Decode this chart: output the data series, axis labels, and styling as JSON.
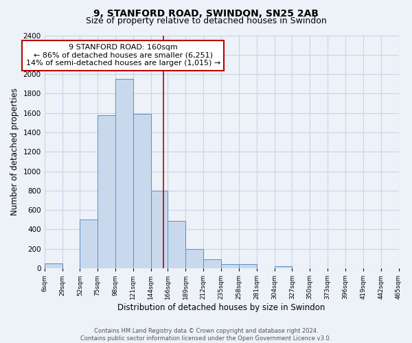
{
  "title": "9, STANFORD ROAD, SWINDON, SN25 2AB",
  "subtitle": "Size of property relative to detached houses in Swindon",
  "xlabel": "Distribution of detached houses by size in Swindon",
  "ylabel": "Number of detached properties",
  "bin_edges": [
    6,
    29,
    52,
    75,
    98,
    121,
    144,
    166,
    189,
    212,
    235,
    258,
    281,
    304,
    327,
    350,
    373,
    396,
    419,
    442,
    465
  ],
  "bar_heights": [
    50,
    0,
    500,
    1580,
    1950,
    1590,
    800,
    490,
    200,
    90,
    40,
    40,
    0,
    20,
    0,
    0,
    0,
    0,
    0,
    0
  ],
  "bar_color": "#c8d9ed",
  "bar_edge_color": "#5b8dc8",
  "grid_color": "#c8d4e8",
  "background_color": "#edf1f8",
  "property_line_x": 160,
  "property_line_color": "#bb0000",
  "annotation_text": "9 STANFORD ROAD: 160sqm\n← 86% of detached houses are smaller (6,251)\n14% of semi-detached houses are larger (1,015) →",
  "annotation_box_color": "#bb0000",
  "annotation_box_fill": "#ffffff",
  "ylim": [
    0,
    2400
  ],
  "yticks": [
    0,
    200,
    400,
    600,
    800,
    1000,
    1200,
    1400,
    1600,
    1800,
    2000,
    2200,
    2400
  ],
  "tick_labels": [
    "6sqm",
    "29sqm",
    "52sqm",
    "75sqm",
    "98sqm",
    "121sqm",
    "144sqm",
    "166sqm",
    "189sqm",
    "212sqm",
    "235sqm",
    "258sqm",
    "281sqm",
    "304sqm",
    "327sqm",
    "350sqm",
    "373sqm",
    "396sqm",
    "419sqm",
    "442sqm",
    "465sqm"
  ],
  "footer_text": "Contains HM Land Registry data © Crown copyright and database right 2024.\nContains public sector information licensed under the Open Government Licence v3.0.",
  "title_fontsize": 10,
  "subtitle_fontsize": 9,
  "annotation_fontsize": 8
}
